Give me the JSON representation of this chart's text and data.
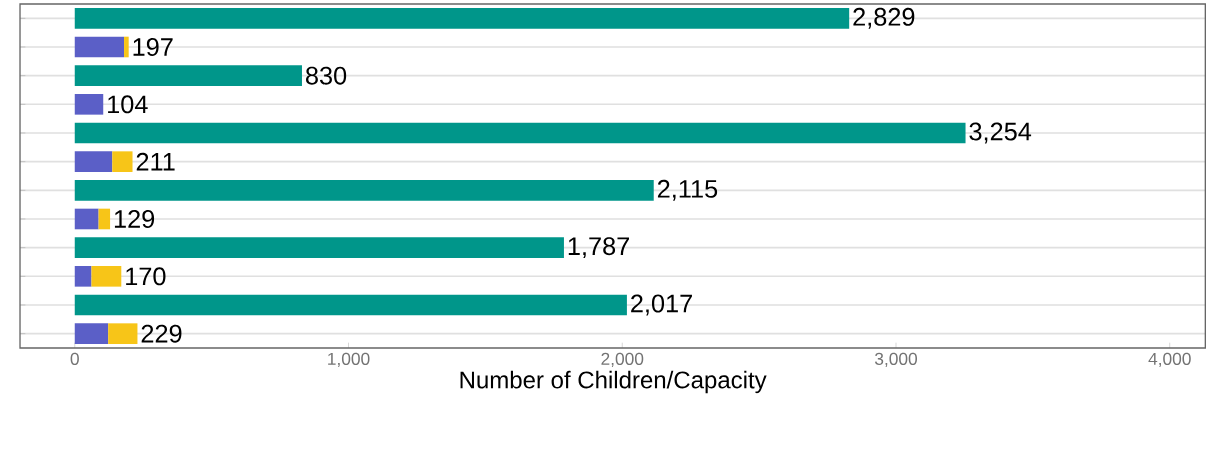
{
  "chart_data": {
    "type": "bar",
    "orientation": "horizontal",
    "stacked": true,
    "xlabel": "Number of Children/Capacity",
    "categories": [
      null,
      null,
      null,
      null,
      null,
      null,
      null,
      null,
      null,
      null,
      null,
      null
    ],
    "series": [
      {
        "color": "#00968a",
        "values": [
          2829,
          null,
          830,
          null,
          3254,
          null,
          2115,
          null,
          1787,
          null,
          2017,
          null
        ]
      },
      {
        "color": "#5b5fc7",
        "values": [
          null,
          180,
          null,
          104,
          null,
          137,
          null,
          87,
          null,
          61,
          null,
          122
        ]
      },
      {
        "color": "#f7c518",
        "values": [
          null,
          17,
          null,
          0,
          null,
          74,
          null,
          42,
          null,
          109,
          null,
          107
        ]
      }
    ],
    "totals": [
      "2,829",
      "197",
      "830",
      "104",
      "3,254",
      "211",
      "2,115",
      "129",
      "1,787",
      "170",
      "2,017",
      "229"
    ],
    "xlim": [
      -200,
      4130
    ],
    "xticks": [
      0,
      {
        "value": 1000,
        "label": "1,000"
      },
      {
        "value": 2000,
        "label": "2,000"
      },
      {
        "value": 3000,
        "label": "3,000"
      },
      {
        "value": 4000,
        "label": "4,000"
      }
    ],
    "grid": "y",
    "tick_labels": "x"
  }
}
